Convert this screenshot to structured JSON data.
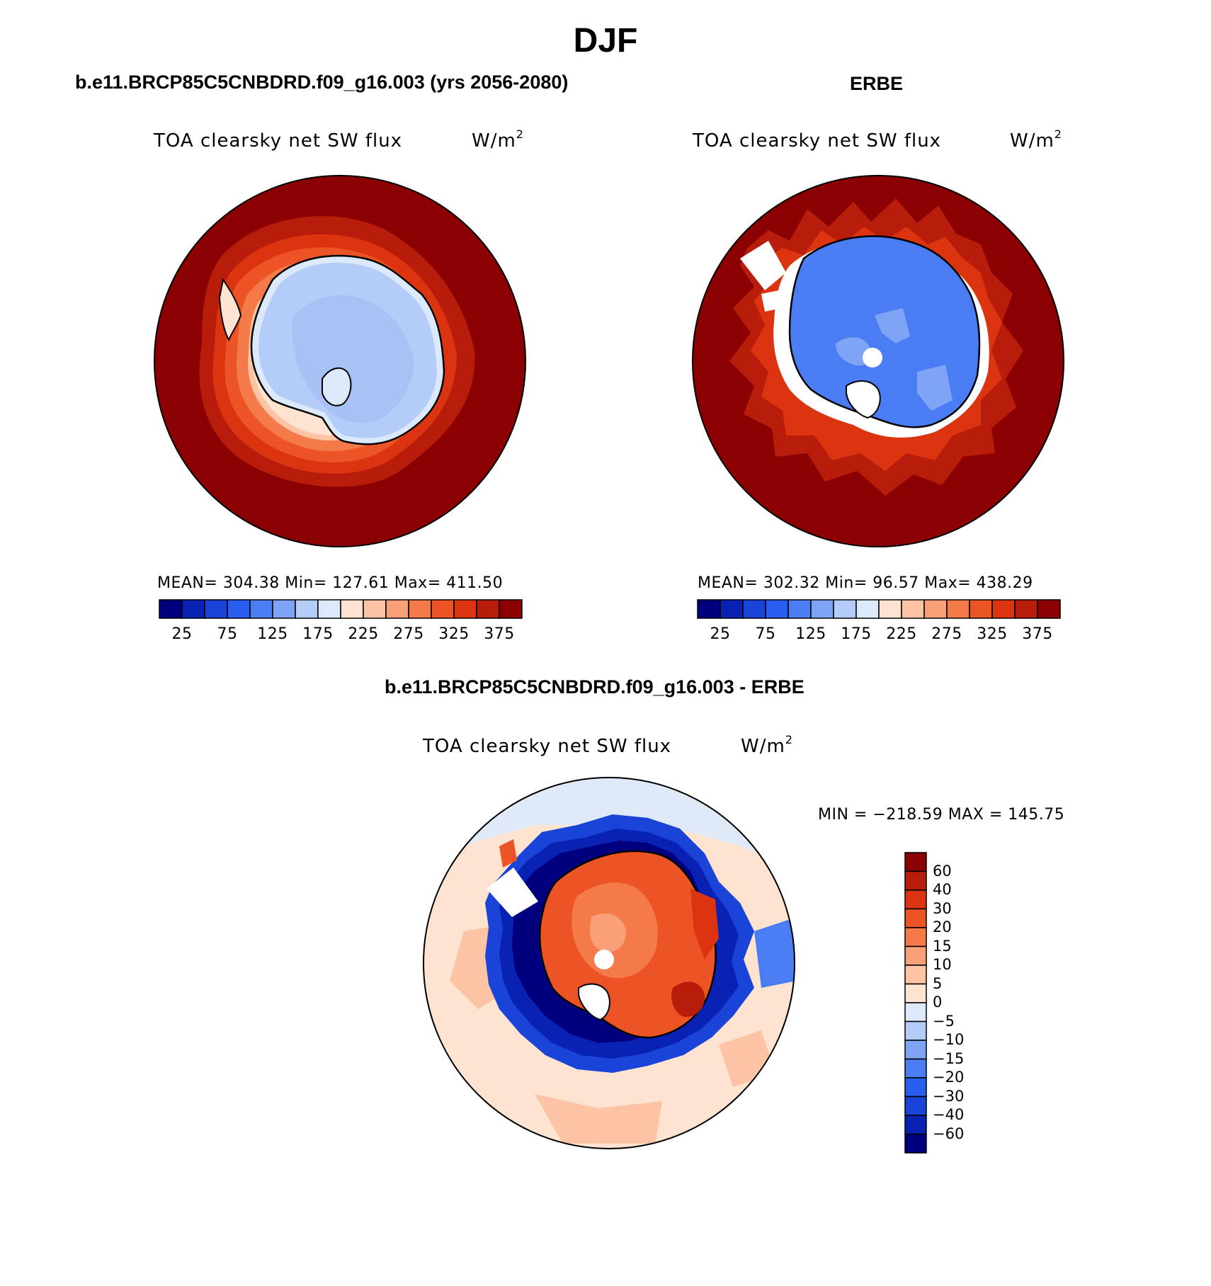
{
  "title": "DJF",
  "panels": [
    {
      "id": "model",
      "header": "b.e11.BRCP85C5CNBDRD.f09_g16.003 (yrs 2056-2080)",
      "variable": "TOA clearsky net SW flux",
      "units": "W/m",
      "units_sup": "2",
      "stats": {
        "mean": "304.38",
        "min": "127.61",
        "max": "411.50"
      },
      "stats_text": "MEAN= 304.38   Min= 127.61   Max= 411.50"
    },
    {
      "id": "obs",
      "header": "ERBE",
      "variable": "TOA clearsky net SW flux",
      "units": "W/m",
      "units_sup": "2",
      "stats": {
        "mean": "302.32",
        "min": "96.57",
        "max": "438.29"
      },
      "stats_text": "MEAN= 302.32   Min=   96.57   Max= 438.29"
    },
    {
      "id": "diff",
      "header": "b.e11.BRCP85C5CNBDRD.f09_g16.003 - ERBE",
      "variable": "TOA clearsky net SW flux",
      "units": "W/m",
      "units_sup": "2",
      "stats": {
        "min": "-218.59",
        "max": "145.75"
      },
      "stats_text": "MIN = −218.59 MAX = 145.75"
    }
  ],
  "colorbar_abs": {
    "labels": [
      "25",
      "75",
      "125",
      "175",
      "225",
      "275",
      "325",
      "375"
    ],
    "colors": [
      "#00007f",
      "#0a22b4",
      "#1a44d8",
      "#2a5ef0",
      "#4a7cf4",
      "#7fa4f6",
      "#b4cdf8",
      "#dce9fb",
      "#fde3d0",
      "#fcc3a5",
      "#f9a078",
      "#f47a4a",
      "#ec5426",
      "#dc3410",
      "#b81c0a",
      "#8b0000"
    ]
  },
  "colorbar_diff": {
    "labels": [
      "60",
      "40",
      "30",
      "20",
      "15",
      "10",
      "5",
      "0",
      "−5",
      "−10",
      "−15",
      "−20",
      "−30",
      "−40",
      "−60"
    ],
    "colors": [
      "#8b0000",
      "#b81c0a",
      "#dc3410",
      "#ec5426",
      "#f47a4a",
      "#f9a078",
      "#fcc3a5",
      "#fde3d0",
      "#dce9fb",
      "#b4cdf8",
      "#7fa4f6",
      "#4a7cf4",
      "#2a5ef0",
      "#1a44d8",
      "#0a22b4",
      "#00007f"
    ]
  },
  "colors": {
    "dark_red": "#8b0000",
    "light_blue": "#a9c2f5",
    "mid_blue": "#4a7cf4",
    "dark_blue": "#0a1aa8",
    "orange_red": "#ec5426",
    "pale_peach": "#fde3d0"
  }
}
